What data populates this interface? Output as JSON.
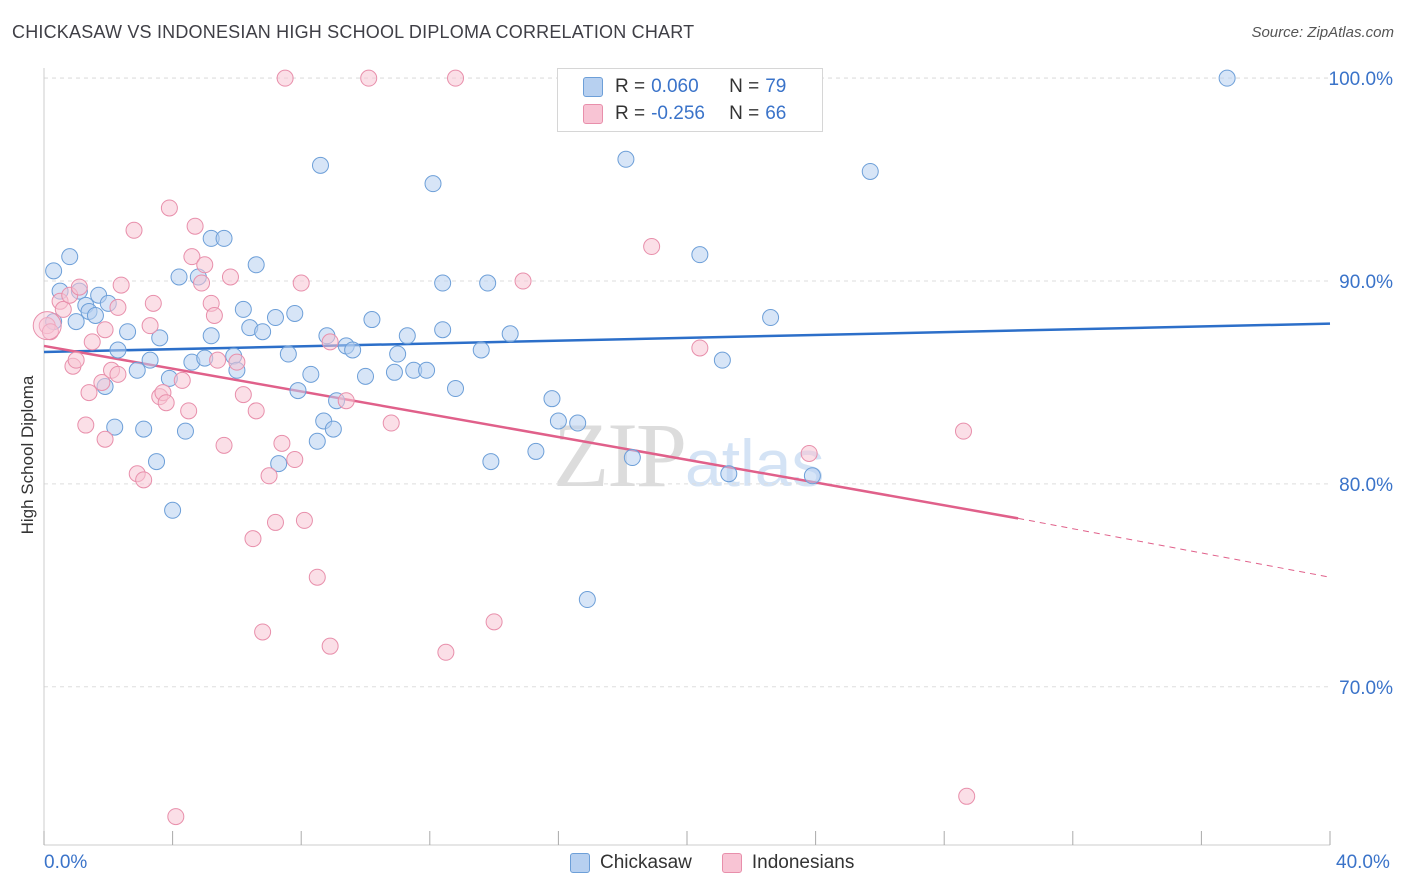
{
  "header": {
    "title": "CHICKASAW VS INDONESIAN HIGH SCHOOL DIPLOMA CORRELATION CHART",
    "source": "Source: ZipAtlas.com"
  },
  "watermark": {
    "zip": "ZIP",
    "atlas": "atlas"
  },
  "legend": {
    "rows": [
      {
        "r_label": "R =",
        "r_value": "0.060",
        "n_label": "N =",
        "n_value": "79"
      },
      {
        "r_label": "R =",
        "r_value": "-0.256",
        "n_label": "N =",
        "n_value": "66"
      }
    ],
    "items": [
      "Chickasaw",
      "Indonesians"
    ]
  },
  "colors": {
    "chickasaw_fill": "#b7d0f0",
    "chickasaw_stroke": "#6d9fd8",
    "chickasaw_line": "#2c6fc9",
    "indonesian_fill": "#f8c4d4",
    "indonesian_stroke": "#e88fab",
    "indonesian_line": "#e0608a",
    "axis_label": "#3a73c9",
    "grid": "#dddddd"
  },
  "chart_data": {
    "type": "scatter",
    "title": "CHICKASAW VS INDONESIAN HIGH SCHOOL DIPLOMA CORRELATION CHART",
    "xlabel": "",
    "ylabel": "High School Diploma",
    "xlim": [
      0,
      40
    ],
    "ylim": [
      62.2,
      100.5
    ],
    "x_tick_labels": [
      "0.0%",
      "40.0%"
    ],
    "y_ticks": [
      70,
      80,
      90,
      100
    ],
    "y_tick_labels": [
      "70.0%",
      "80.0%",
      "90.0%",
      "100.0%"
    ],
    "grid": true,
    "series": [
      {
        "name": "Chickasaw",
        "points": [
          [
            0.3,
            88.0
          ],
          [
            0.3,
            90.5
          ],
          [
            0.5,
            89.5
          ],
          [
            0.8,
            91.2
          ],
          [
            1.0,
            88.0
          ],
          [
            1.1,
            89.5
          ],
          [
            1.3,
            88.8
          ],
          [
            1.4,
            88.5
          ],
          [
            1.6,
            88.3
          ],
          [
            1.7,
            89.3
          ],
          [
            1.9,
            84.8
          ],
          [
            2.0,
            88.9
          ],
          [
            2.3,
            86.6
          ],
          [
            2.2,
            82.8
          ],
          [
            2.6,
            87.5
          ],
          [
            2.9,
            85.6
          ],
          [
            3.1,
            82.7
          ],
          [
            3.3,
            86.1
          ],
          [
            3.5,
            81.1
          ],
          [
            3.6,
            87.2
          ],
          [
            3.9,
            85.2
          ],
          [
            4.0,
            78.7
          ],
          [
            4.2,
            90.2
          ],
          [
            4.4,
            82.6
          ],
          [
            4.6,
            86.0
          ],
          [
            4.8,
            90.2
          ],
          [
            5.0,
            86.2
          ],
          [
            5.2,
            92.1
          ],
          [
            5.2,
            87.3
          ],
          [
            5.6,
            92.1
          ],
          [
            5.9,
            86.3
          ],
          [
            6.0,
            85.6
          ],
          [
            6.2,
            88.6
          ],
          [
            6.4,
            87.7
          ],
          [
            6.6,
            90.8
          ],
          [
            6.8,
            87.5
          ],
          [
            7.2,
            88.2
          ],
          [
            7.3,
            81.0
          ],
          [
            7.6,
            86.4
          ],
          [
            7.8,
            88.4
          ],
          [
            7.9,
            84.6
          ],
          [
            8.3,
            85.4
          ],
          [
            8.5,
            82.1
          ],
          [
            8.7,
            83.1
          ],
          [
            8.8,
            87.3
          ],
          [
            8.6,
            95.7
          ],
          [
            9.0,
            82.7
          ],
          [
            9.1,
            84.1
          ],
          [
            9.4,
            86.8
          ],
          [
            9.6,
            86.6
          ],
          [
            10.0,
            85.3
          ],
          [
            10.2,
            88.1
          ],
          [
            10.9,
            85.5
          ],
          [
            11.0,
            86.4
          ],
          [
            11.3,
            87.3
          ],
          [
            11.5,
            85.6
          ],
          [
            11.9,
            85.6
          ],
          [
            12.1,
            94.8
          ],
          [
            12.4,
            87.6
          ],
          [
            12.4,
            89.9
          ],
          [
            12.8,
            84.7
          ],
          [
            13.6,
            86.6
          ],
          [
            13.8,
            89.9
          ],
          [
            13.9,
            81.1
          ],
          [
            14.5,
            87.4
          ],
          [
            15.3,
            81.6
          ],
          [
            15.8,
            84.2
          ],
          [
            16.0,
            83.1
          ],
          [
            16.6,
            83.0
          ],
          [
            16.9,
            74.3
          ],
          [
            18.1,
            96.0
          ],
          [
            18.3,
            81.3
          ],
          [
            20.4,
            91.3
          ],
          [
            21.1,
            86.1
          ],
          [
            21.3,
            80.5
          ],
          [
            22.6,
            88.2
          ],
          [
            23.9,
            80.4
          ],
          [
            25.7,
            95.4
          ],
          [
            36.8,
            100.0
          ]
        ]
      },
      {
        "name": "Indonesians",
        "points": [
          [
            0.1,
            87.8
          ],
          [
            0.5,
            89.0
          ],
          [
            0.6,
            88.6
          ],
          [
            0.8,
            89.3
          ],
          [
            0.9,
            85.8
          ],
          [
            1.0,
            86.1
          ],
          [
            1.1,
            89.7
          ],
          [
            1.3,
            82.9
          ],
          [
            1.4,
            84.5
          ],
          [
            1.5,
            87.0
          ],
          [
            1.8,
            85.0
          ],
          [
            1.9,
            87.6
          ],
          [
            1.9,
            82.2
          ],
          [
            2.1,
            85.6
          ],
          [
            2.3,
            85.4
          ],
          [
            2.3,
            88.7
          ],
          [
            2.4,
            89.8
          ],
          [
            2.8,
            92.5
          ],
          [
            2.9,
            80.5
          ],
          [
            3.1,
            80.2
          ],
          [
            3.3,
            87.8
          ],
          [
            3.4,
            88.9
          ],
          [
            3.6,
            84.3
          ],
          [
            3.7,
            84.5
          ],
          [
            3.8,
            84.0
          ],
          [
            3.9,
            93.6
          ],
          [
            4.1,
            63.6
          ],
          [
            4.3,
            85.1
          ],
          [
            4.5,
            83.6
          ],
          [
            4.6,
            91.2
          ],
          [
            4.7,
            92.7
          ],
          [
            4.9,
            89.9
          ],
          [
            5.0,
            90.8
          ],
          [
            5.2,
            88.9
          ],
          [
            5.3,
            88.3
          ],
          [
            5.4,
            86.1
          ],
          [
            5.6,
            81.9
          ],
          [
            5.8,
            90.2
          ],
          [
            6.0,
            86.0
          ],
          [
            6.2,
            84.4
          ],
          [
            6.5,
            77.3
          ],
          [
            6.6,
            83.6
          ],
          [
            6.8,
            72.7
          ],
          [
            7.0,
            80.4
          ],
          [
            7.2,
            78.1
          ],
          [
            7.4,
            82.0
          ],
          [
            7.5,
            100.0
          ],
          [
            7.8,
            81.2
          ],
          [
            8.0,
            89.9
          ],
          [
            8.1,
            78.2
          ],
          [
            8.5,
            75.4
          ],
          [
            8.9,
            87.0
          ],
          [
            8.9,
            72.0
          ],
          [
            9.4,
            84.1
          ],
          [
            10.1,
            100.0
          ],
          [
            10.8,
            83.0
          ],
          [
            12.5,
            71.7
          ],
          [
            12.8,
            100.0
          ],
          [
            14.0,
            73.2
          ],
          [
            14.9,
            90.0
          ],
          [
            18.9,
            91.7
          ],
          [
            20.4,
            86.7
          ],
          [
            23.8,
            81.5
          ],
          [
            28.6,
            82.6
          ],
          [
            28.7,
            64.6
          ],
          [
            0.2,
            87.5
          ]
        ]
      }
    ],
    "trendlines": [
      {
        "series": "Chickasaw",
        "x": [
          0,
          40
        ],
        "y": [
          86.5,
          87.9
        ]
      },
      {
        "series": "Indonesians",
        "x": [
          0,
          30.3
        ],
        "y": [
          86.8,
          78.3
        ]
      }
    ],
    "trend_dash_end": {
      "series": "Indonesians",
      "x": [
        30.3,
        40
      ],
      "y": [
        78.3,
        75.4
      ]
    }
  }
}
